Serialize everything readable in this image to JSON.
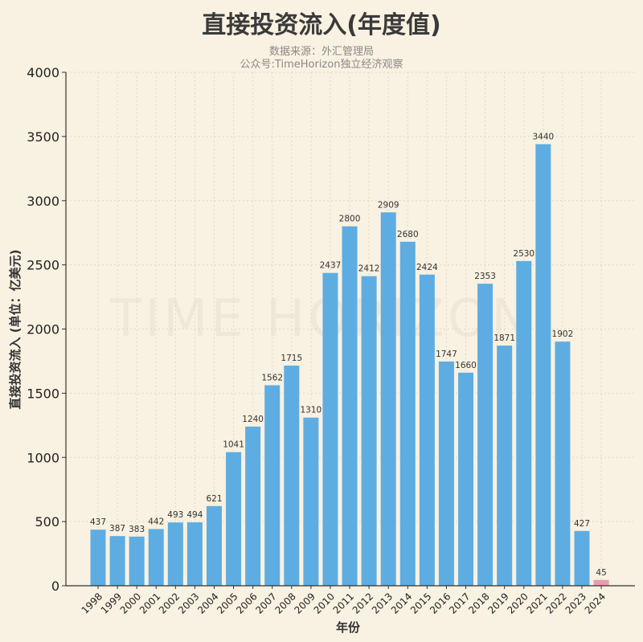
{
  "chart_data": {
    "type": "bar",
    "title": "直接投资流入(年度值)",
    "subtitle": [
      "数据来源：外汇管理局",
      "公众号:TimeHorizon独立经济观察"
    ],
    "xlabel": "年份",
    "ylabel": "直接投资流入 (单位：亿美元)",
    "ylim": [
      0,
      4000
    ],
    "yticks": [
      0,
      500,
      1000,
      1500,
      2000,
      2500,
      3000,
      3500,
      4000
    ],
    "grid": true,
    "watermark": "TIME HORIZON",
    "categories": [
      "1998",
      "1999",
      "2000",
      "2001",
      "2002",
      "2003",
      "2004",
      "2005",
      "2006",
      "2007",
      "2008",
      "2009",
      "2010",
      "2011",
      "2012",
      "2013",
      "2014",
      "2015",
      "2016",
      "2017",
      "2018",
      "2019",
      "2020",
      "2021",
      "2022",
      "2023",
      "2024"
    ],
    "values": [
      437,
      387,
      383,
      442,
      493,
      494,
      621,
      1041,
      1240,
      1562,
      1715,
      1310,
      2437,
      2800,
      2412,
      2909,
      2680,
      2424,
      1747,
      1660,
      2353,
      1871,
      2530,
      3440,
      1902,
      427,
      45
    ],
    "colors": {
      "default": "#5dade2",
      "highlight": "#e89bb2",
      "highlight_category": "2024",
      "background": "#f9f1e1"
    }
  }
}
